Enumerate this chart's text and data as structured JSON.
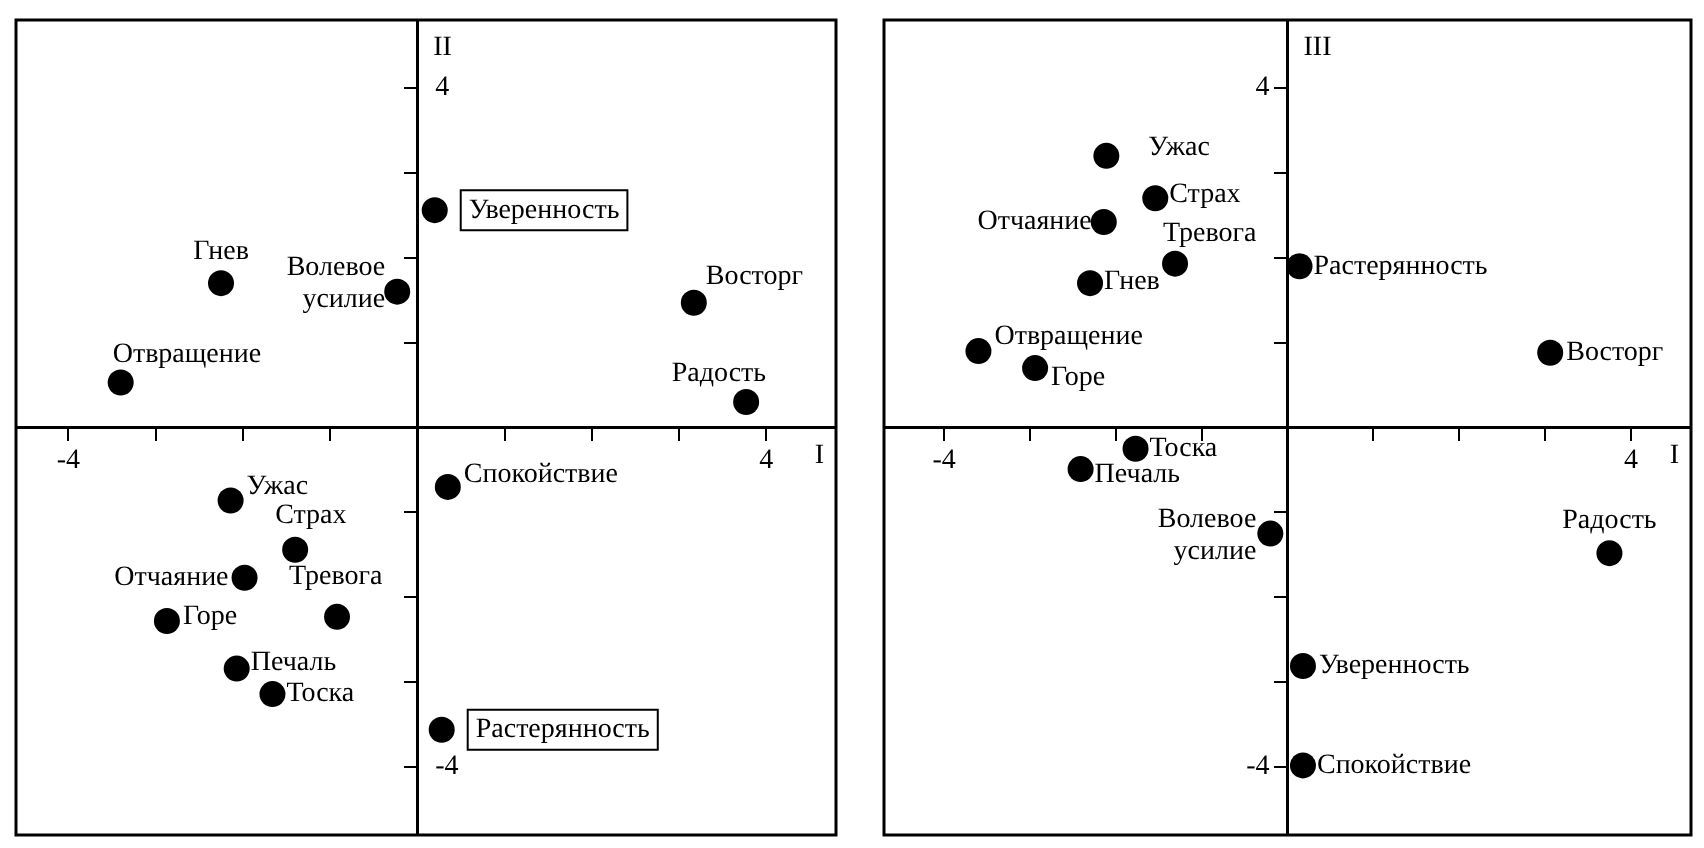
{
  "chart_data": [
    {
      "type": "scatter",
      "xlabel": "I",
      "ylabel": "II",
      "marker": "circle",
      "legend": false,
      "grid": false,
      "xlim": [
        -4.6,
        4.8
      ],
      "ylim": [
        -4.8,
        4.8
      ],
      "xticks": [
        {
          "value": -4,
          "label": "-4"
        },
        {
          "value": -3,
          "label": null
        },
        {
          "value": -2,
          "label": null
        },
        {
          "value": -1,
          "label": null
        },
        {
          "value": 1,
          "label": null
        },
        {
          "value": 2,
          "label": null
        },
        {
          "value": 3,
          "label": null
        },
        {
          "value": 4,
          "label": "4"
        }
      ],
      "yticks": [
        {
          "value": -4,
          "label": "-4"
        },
        {
          "value": -3,
          "label": null
        },
        {
          "value": -2,
          "label": null
        },
        {
          "value": -1,
          "label": null
        },
        {
          "value": 1,
          "label": null
        },
        {
          "value": 2,
          "label": null
        },
        {
          "value": 3,
          "label": null
        },
        {
          "value": 4,
          "label": "4"
        }
      ],
      "series": [
        {
          "color": "#000000",
          "x": [
            0.2,
            -2.25,
            -0.23,
            3.17,
            -3.4,
            3.77,
            0.35,
            -2.14,
            -1.4,
            -1.98,
            -0.92,
            -2.87,
            -2.07,
            -1.66,
            0.28
          ],
          "values": [
            2.56,
            1.7,
            1.6,
            1.47,
            0.53,
            0.3,
            -0.7,
            -0.86,
            -1.44,
            -1.77,
            -2.23,
            -2.28,
            -2.84,
            -3.14,
            -3.56
          ]
        }
      ],
      "annotations": [
        {
          "text": "Уверенность",
          "x": 0.2,
          "y": 2.56
        },
        {
          "text": "Гнев",
          "x": -2.25,
          "y": 1.7
        },
        {
          "text": "Волевое усилие",
          "x": -0.23,
          "y": 1.6
        },
        {
          "text": "Восторг",
          "x": 3.17,
          "y": 1.47
        },
        {
          "text": "Отвращение",
          "x": -3.4,
          "y": 0.53
        },
        {
          "text": "Радость",
          "x": 3.77,
          "y": 0.3
        },
        {
          "text": "Спокойствие",
          "x": 0.35,
          "y": -0.7
        },
        {
          "text": "Ужас",
          "x": -2.14,
          "y": -0.86
        },
        {
          "text": "Страх",
          "x": -1.4,
          "y": -1.44
        },
        {
          "text": "Отчаяние",
          "x": -1.98,
          "y": -1.77
        },
        {
          "text": "Тревога",
          "x": -0.92,
          "y": -2.23
        },
        {
          "text": "Горе",
          "x": -2.87,
          "y": -2.28
        },
        {
          "text": "Печаль",
          "x": -2.07,
          "y": -2.84
        },
        {
          "text": "Тоска",
          "x": -1.66,
          "y": -3.14
        },
        {
          "text": "Растерянность",
          "x": 0.28,
          "y": -3.56
        }
      ]
    },
    {
      "type": "scatter",
      "xlabel": "I",
      "ylabel": "III",
      "marker": "circle",
      "legend": false,
      "grid": false,
      "xlim": [
        -4.7,
        4.7
      ],
      "ylim": [
        -4.8,
        4.8
      ],
      "xticks": [
        {
          "value": -4,
          "label": "-4"
        },
        {
          "value": -3,
          "label": null
        },
        {
          "value": -2,
          "label": null
        },
        {
          "value": -1,
          "label": null
        },
        {
          "value": 1,
          "label": null
        },
        {
          "value": 2,
          "label": null
        },
        {
          "value": 3,
          "label": null
        },
        {
          "value": 4,
          "label": "4"
        }
      ],
      "yticks": [
        {
          "value": -4,
          "label": "-4"
        },
        {
          "value": -3,
          "label": null
        },
        {
          "value": -2,
          "label": null
        },
        {
          "value": -1,
          "label": null
        },
        {
          "value": 1,
          "label": null
        },
        {
          "value": 2,
          "label": null
        },
        {
          "value": 3,
          "label": null
        },
        {
          "value": 4,
          "label": "4"
        }
      ],
      "series": [
        {
          "color": "#000000",
          "x": [
            -2.11,
            -1.54,
            -2.14,
            -1.31,
            0.14,
            -2.3,
            -3.6,
            3.06,
            -2.94,
            -1.77,
            -2.41,
            -0.2,
            3.75,
            0.18,
            0.18
          ],
          "values": [
            3.2,
            2.7,
            2.42,
            1.93,
            1.9,
            1.7,
            0.9,
            0.88,
            0.7,
            -0.25,
            -0.49,
            -1.25,
            -1.48,
            -2.81,
            -3.98
          ]
        }
      ],
      "annotations": [
        {
          "text": "Ужас",
          "x": -2.11,
          "y": 3.2
        },
        {
          "text": "Страх",
          "x": -1.54,
          "y": 2.7
        },
        {
          "text": "Отчаяние",
          "x": -2.14,
          "y": 2.42
        },
        {
          "text": "Тревога",
          "x": -1.31,
          "y": 1.93
        },
        {
          "text": "Растерянность",
          "x": 0.14,
          "y": 1.9
        },
        {
          "text": "Гнев",
          "x": -2.3,
          "y": 1.7
        },
        {
          "text": "Отвращение",
          "x": -3.6,
          "y": 0.9
        },
        {
          "text": "Восторг",
          "x": 3.06,
          "y": 0.88
        },
        {
          "text": "Горе",
          "x": -2.94,
          "y": 0.7
        },
        {
          "text": "Тоска",
          "x": -1.77,
          "y": -0.25
        },
        {
          "text": "Печаль",
          "x": -2.41,
          "y": -0.49
        },
        {
          "text": "Волевое усилие",
          "x": -0.2,
          "y": -1.25
        },
        {
          "text": "Радость",
          "x": 3.75,
          "y": -1.48
        },
        {
          "text": "Уверенность",
          "x": 0.18,
          "y": -2.81
        },
        {
          "text": "Спокойствие",
          "x": 0.18,
          "y": -3.98
        }
      ]
    }
  ]
}
